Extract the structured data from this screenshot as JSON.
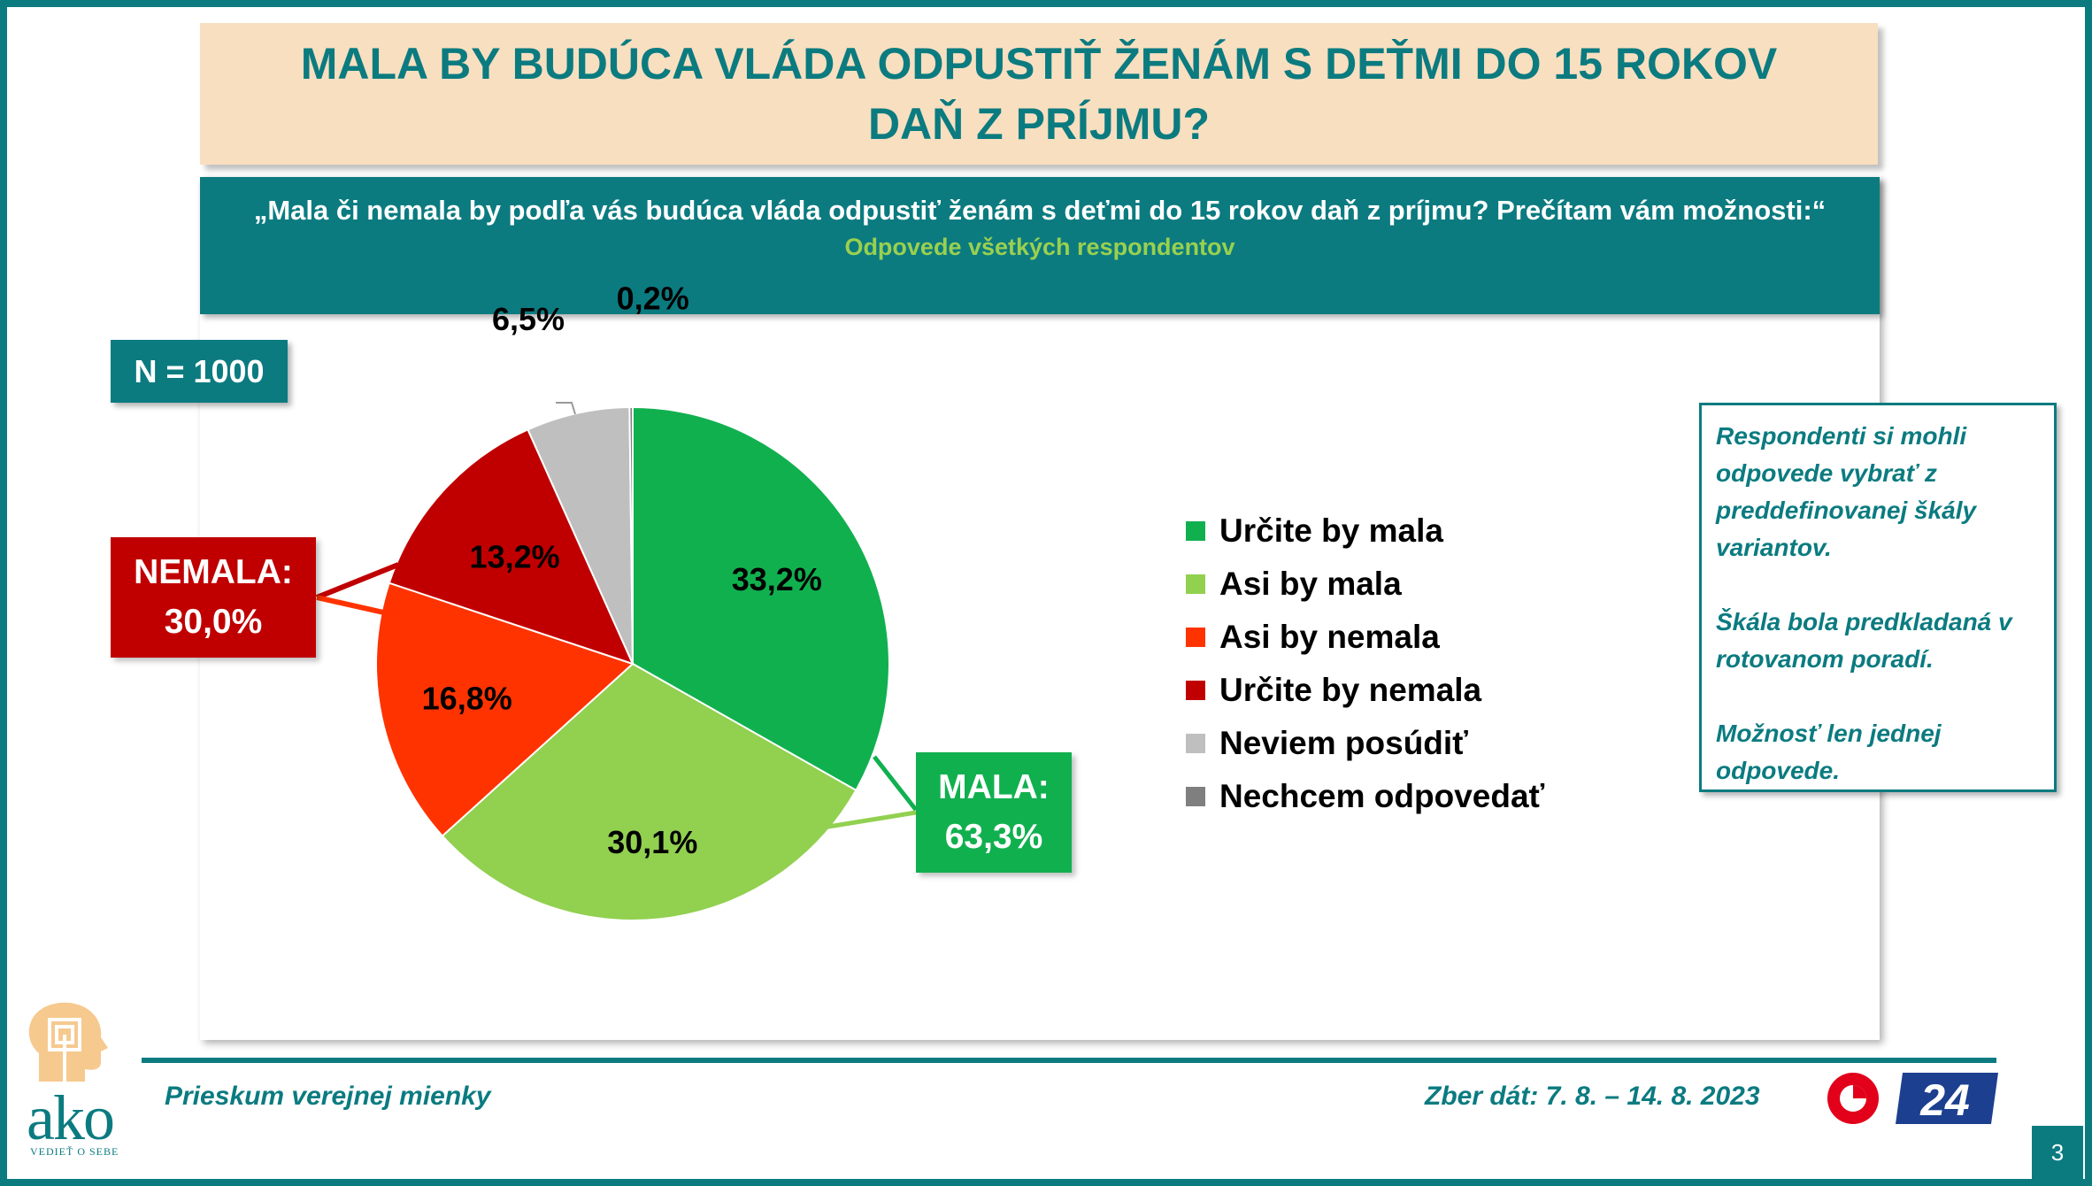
{
  "title": "MALA BY BUDÚCA VLÁDA ODPUSTIŤ ŽENÁM S DEŤMI DO 15 ROKOV DAŇ Z PRÍJMU?",
  "question": "„Mala či nemala by podľa vás budúca vláda odpustiť ženám s deťmi do 15 rokov daň z príjmu? Prečítam vám možnosti:“",
  "question_sub": "Odpovede všetkých respondentov",
  "n_label": "N = 1000",
  "callouts": {
    "nemala": {
      "label": "NEMALA:",
      "value": "30,0%"
    },
    "mala": {
      "label": "MALA:",
      "value": "63,3%"
    }
  },
  "note": [
    "Respondenti si mohli odpovede vybrať z preddefinovanej škály variantov.",
    "Škála bola predkladaná v rotovanom poradí.",
    "Možnosť len jednej odpovede."
  ],
  "footer": {
    "left": "Prieskum verejnej mienky",
    "right": "Zber dát: 7. 8. – 14. 8. 2023",
    "page": "3",
    "logo_text": "ako",
    "logo_tagline": "VEDIEŤ O SEBE",
    "tv_logo_text": "24"
  },
  "chart_data": {
    "type": "pie",
    "categories": [
      "Určite by mala",
      "Asi by mala",
      "Asi by nemala",
      "Určite by nemala",
      "Neviem posúdiť",
      "Nechcem odpovedať"
    ],
    "values": [
      33.2,
      30.1,
      16.8,
      13.2,
      6.5,
      0.2
    ],
    "labels": [
      "33,2%",
      "30,1%",
      "16,8%",
      "13,2%",
      "6,5%",
      "0,2%"
    ],
    "colors": [
      "#11b04f",
      "#92d050",
      "#ff3300",
      "#c00000",
      "#bfbfbf",
      "#7f7f7f"
    ],
    "legend_position": "right"
  }
}
